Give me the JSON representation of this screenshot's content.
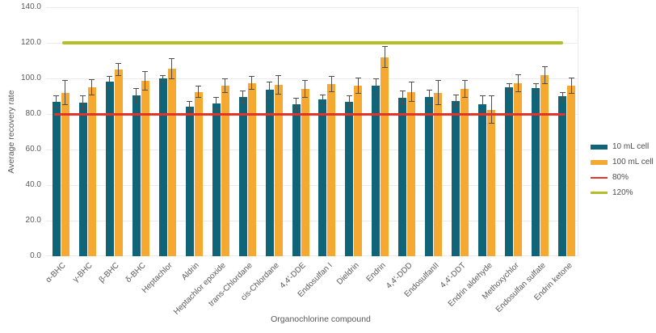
{
  "chart_data": {
    "type": "bar",
    "title": "",
    "xlabel": "Organochlorine compound",
    "ylabel": "Average recovery rate",
    "ylim": [
      0,
      140
    ],
    "grid": true,
    "legend_position": "right",
    "yticks": [
      {
        "value": 0,
        "label": "0.0"
      },
      {
        "value": 20,
        "label": "20.0"
      },
      {
        "value": 40,
        "label": "40.0"
      },
      {
        "value": 60,
        "label": "60.0"
      },
      {
        "value": 80,
        "label": "80.0"
      },
      {
        "value": 100,
        "label": "100.0"
      },
      {
        "value": 120,
        "label": "120.0"
      },
      {
        "value": 140,
        "label": "140.0"
      }
    ],
    "categories": [
      "α-BHC",
      "γ-BHC",
      "β-BHC",
      "δ-BHC",
      "Heptachlor",
      "Aldrin",
      "Heptachlor epoxide",
      "trans-Chlordane",
      "cis-Chlordane",
      "4,4'-DDE",
      "Endosulfan I",
      "Dieldrin",
      "Endrin",
      "4,4'-DDD",
      "EndosulfanII",
      "4,4'-DDT",
      "Endrin aldehyde",
      "Methoxychlor",
      "Endosulfan sulfate",
      "Endrin ketone"
    ],
    "series": [
      {
        "name": "10 mL cell",
        "color": "#0f6478",
        "values": [
          87,
          86.5,
          98,
          90.5,
          100,
          84,
          86,
          89.5,
          93.5,
          85.5,
          88,
          87,
          96,
          89,
          89.5,
          87.5,
          85.5,
          95,
          94.5,
          90
        ],
        "errors": [
          3.5,
          4,
          3.5,
          4,
          2,
          3.5,
          3.5,
          3.5,
          4.5,
          3.5,
          3,
          3.5,
          4,
          4,
          4,
          3.5,
          5,
          2.5,
          3,
          2.5
        ]
      },
      {
        "name": "100 mL cell",
        "color": "#f5a930",
        "values": [
          92,
          95,
          105,
          98.5,
          105.5,
          92.5,
          96,
          97.5,
          96.5,
          94,
          97,
          96,
          112,
          92.5,
          92,
          94,
          82.5,
          97.5,
          102,
          96
        ],
        "errors": [
          7,
          4.5,
          3.5,
          5.5,
          6,
          3.5,
          4,
          4,
          5.5,
          5,
          4.5,
          4.5,
          6,
          5.5,
          7,
          5,
          8,
          5,
          5,
          4.5
        ]
      }
    ],
    "reference_lines": [
      {
        "name": "80%",
        "value": 80,
        "color": "#e6332a",
        "thickness": 3
      },
      {
        "name": "120%",
        "value": 120,
        "color": "#b3bf27",
        "thickness": 4
      }
    ],
    "error_bar_color": "#4f4f4f",
    "gridline_color": "#ebebeb"
  }
}
